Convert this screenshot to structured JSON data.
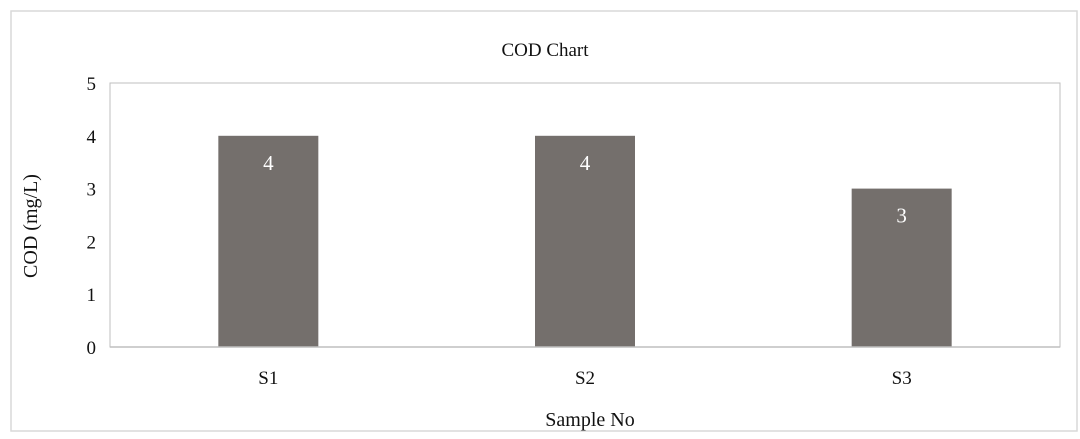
{
  "chart_data": {
    "type": "bar",
    "title": "COD Chart",
    "xlabel": "Sample No",
    "ylabel": "COD (mg/L)",
    "categories": [
      "S1",
      "S2",
      "S3"
    ],
    "values": [
      4,
      4,
      3
    ],
    "data_labels": [
      "4",
      "4",
      "3"
    ],
    "ylim": [
      0,
      5
    ],
    "yticks": [
      "0",
      "1",
      "2",
      "3",
      "4",
      "5"
    ],
    "grid": false,
    "colors": {
      "bar": "#746f6c",
      "label": "#ffffff",
      "frame": "#d9d9d9",
      "axis": "#bfbfbf"
    }
  }
}
